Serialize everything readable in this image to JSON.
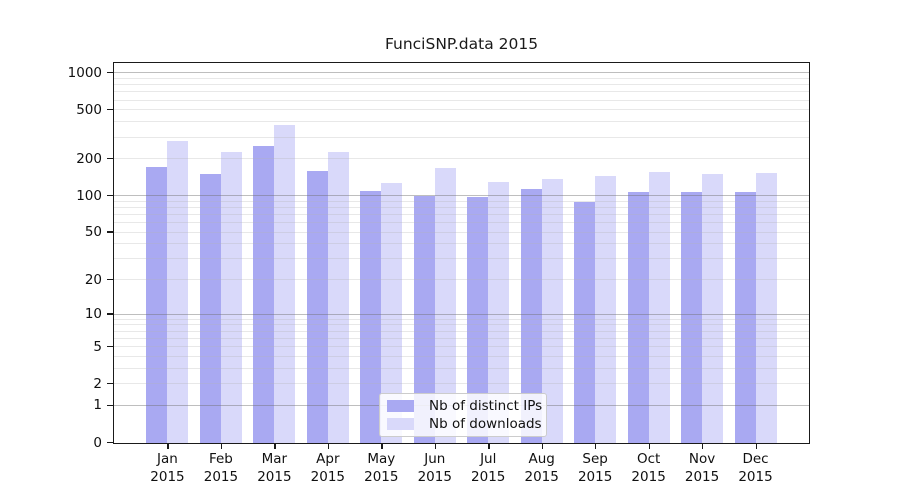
{
  "chart_data": {
    "type": "bar",
    "title": "FunciSNP.data 2015",
    "categories": [
      "Jan",
      "Feb",
      "Mar",
      "Apr",
      "May",
      "Jun",
      "Jul",
      "Aug",
      "Sep",
      "Oct",
      "Nov",
      "Dec"
    ],
    "category_year": "2015",
    "series": [
      {
        "name": "Nb of distinct IPs",
        "color": "#a9a9f2",
        "values": [
          172,
          150,
          258,
          160,
          110,
          100,
          98,
          115,
          90,
          108,
          107,
          107
        ]
      },
      {
        "name": "Nb of downloads",
        "color": "#d9d9fa",
        "values": [
          283,
          230,
          378,
          228,
          127,
          168,
          131,
          138,
          147,
          156,
          152,
          154
        ]
      }
    ],
    "y_scale": "log1p",
    "y_ticks": [
      0,
      1,
      2,
      5,
      10,
      20,
      50,
      100,
      200,
      500,
      1000
    ],
    "y_axis_max": 1210,
    "ylim": [
      0,
      1210
    ],
    "grid": true,
    "legend_position": "bottom-center",
    "xlabel": "",
    "ylabel": ""
  },
  "colors": {
    "background": "#ffffff",
    "axis": "#1a1a1a",
    "bar_distinct_ips": "#a9a9f2",
    "bar_downloads": "#d9d9fa",
    "grid_major": "#b4b4b4",
    "grid_minor": "#e9e9e9",
    "legend_border": "#cccccc"
  }
}
